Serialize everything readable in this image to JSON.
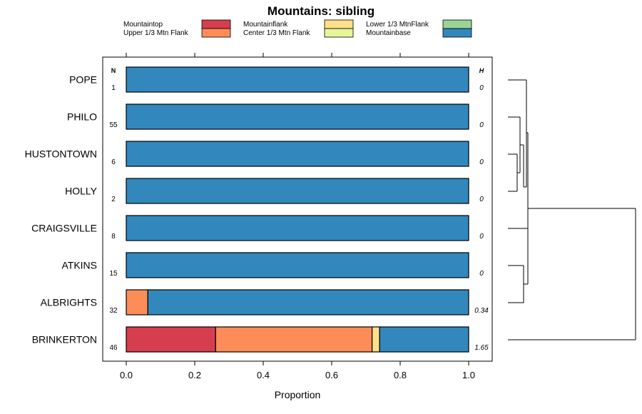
{
  "chart_data": {
    "type": "bar",
    "orientation": "horizontal",
    "stacked": true,
    "title": "Mountains: sibling",
    "xlabel": "Proportion",
    "ylabel": "",
    "xlim": [
      0,
      1
    ],
    "x_ticks": [
      "0.0",
      "0.2",
      "0.4",
      "0.6",
      "0.8",
      "1.0"
    ],
    "n_header": "N",
    "h_header": "H",
    "grid": false,
    "legend_position": "top",
    "legend": [
      {
        "name": "Mountaintop",
        "color": "#d53e4f"
      },
      {
        "name": "Upper 1/3 Mtn Flank",
        "color": "#fc8d59"
      },
      {
        "name": "Mountainflank",
        "color": "#fee08b"
      },
      {
        "name": "Center 1/3 Mtn Flank",
        "color": "#e6f598"
      },
      {
        "name": "Lower 1/3 MtnFlank",
        "color": "#99d594"
      },
      {
        "name": "Mountainbase",
        "color": "#3288bd"
      }
    ],
    "categories": [
      {
        "name": "POPE",
        "n": "1",
        "h": "0",
        "values": [
          0,
          0,
          0,
          0,
          0,
          1.0
        ]
      },
      {
        "name": "PHILO",
        "n": "55",
        "h": "0",
        "values": [
          0,
          0,
          0,
          0,
          0,
          1.0
        ]
      },
      {
        "name": "HUSTONTOWN",
        "n": "6",
        "h": "0",
        "values": [
          0,
          0,
          0,
          0,
          0,
          1.0
        ]
      },
      {
        "name": "HOLLY",
        "n": "2",
        "h": "0",
        "values": [
          0,
          0,
          0,
          0,
          0,
          1.0
        ]
      },
      {
        "name": "CRAIGSVILLE",
        "n": "8",
        "h": "0",
        "values": [
          0,
          0,
          0,
          0,
          0,
          1.0
        ]
      },
      {
        "name": "ATKINS",
        "n": "15",
        "h": "0",
        "values": [
          0,
          0,
          0,
          0,
          0,
          1.0
        ]
      },
      {
        "name": "ALBRIGHTS",
        "n": "32",
        "h": "0.34",
        "values": [
          0,
          0.063,
          0,
          0,
          0,
          0.937
        ]
      },
      {
        "name": "BRINKERTON",
        "n": "46",
        "h": "1.65",
        "values": [
          0.261,
          0.457,
          0.022,
          0,
          0,
          0.26
        ]
      }
    ]
  }
}
